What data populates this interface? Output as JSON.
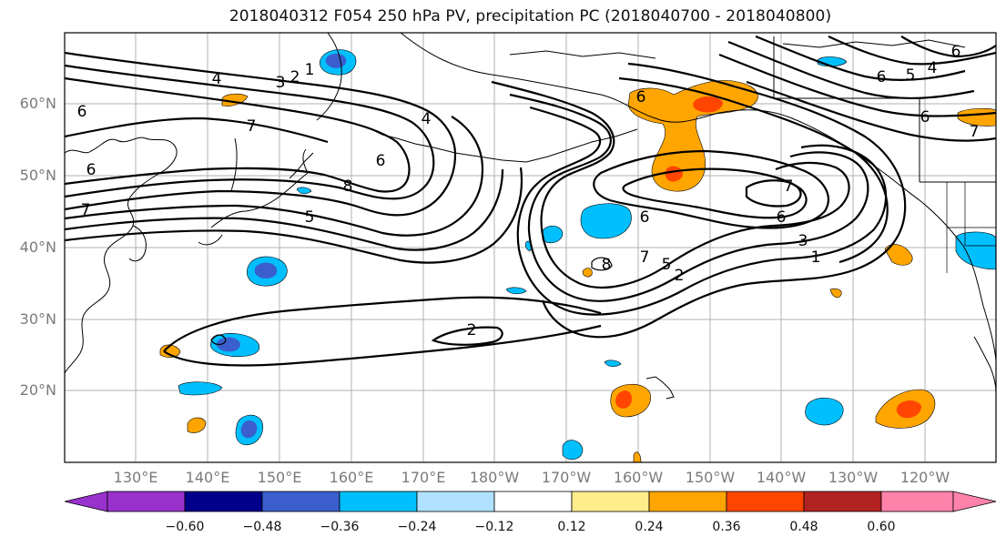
{
  "title": "2018040312 F054 250 hPa PV, precipitation PC (2018040700 - 2018040800)",
  "map": {
    "lat_labels": [
      "60°N",
      "50°N",
      "40°N",
      "30°N",
      "20°N"
    ],
    "lon_labels": [
      "130°E",
      "140°E",
      "150°E",
      "160°E",
      "170°E",
      "180°W",
      "170°W",
      "160°W",
      "150°W",
      "140°W",
      "130°W",
      "120°W"
    ],
    "contour_labels": [
      "4",
      "3",
      "2",
      "1",
      "7",
      "6",
      "4",
      "8",
      "6",
      "5",
      "7",
      "6",
      "7",
      "6",
      "3",
      "1",
      "2",
      "8",
      "7",
      "5",
      "2",
      "6",
      "5",
      "6",
      "4",
      "6",
      "7",
      "6",
      "6"
    ]
  },
  "colorbar": {
    "colors": [
      "#9932cc",
      "#00008b",
      "#3a5fcd",
      "#00bfff",
      "#b0e2ff",
      "#ffffff",
      "#ffec8b",
      "#ffa500",
      "#ff4500",
      "#b22222",
      "#ff82ab"
    ],
    "ticks": [
      "−0.60",
      "−0.48",
      "−0.36",
      "−0.24",
      "−0.12",
      "0.12",
      "0.24",
      "0.36",
      "0.48",
      "0.60"
    ]
  }
}
